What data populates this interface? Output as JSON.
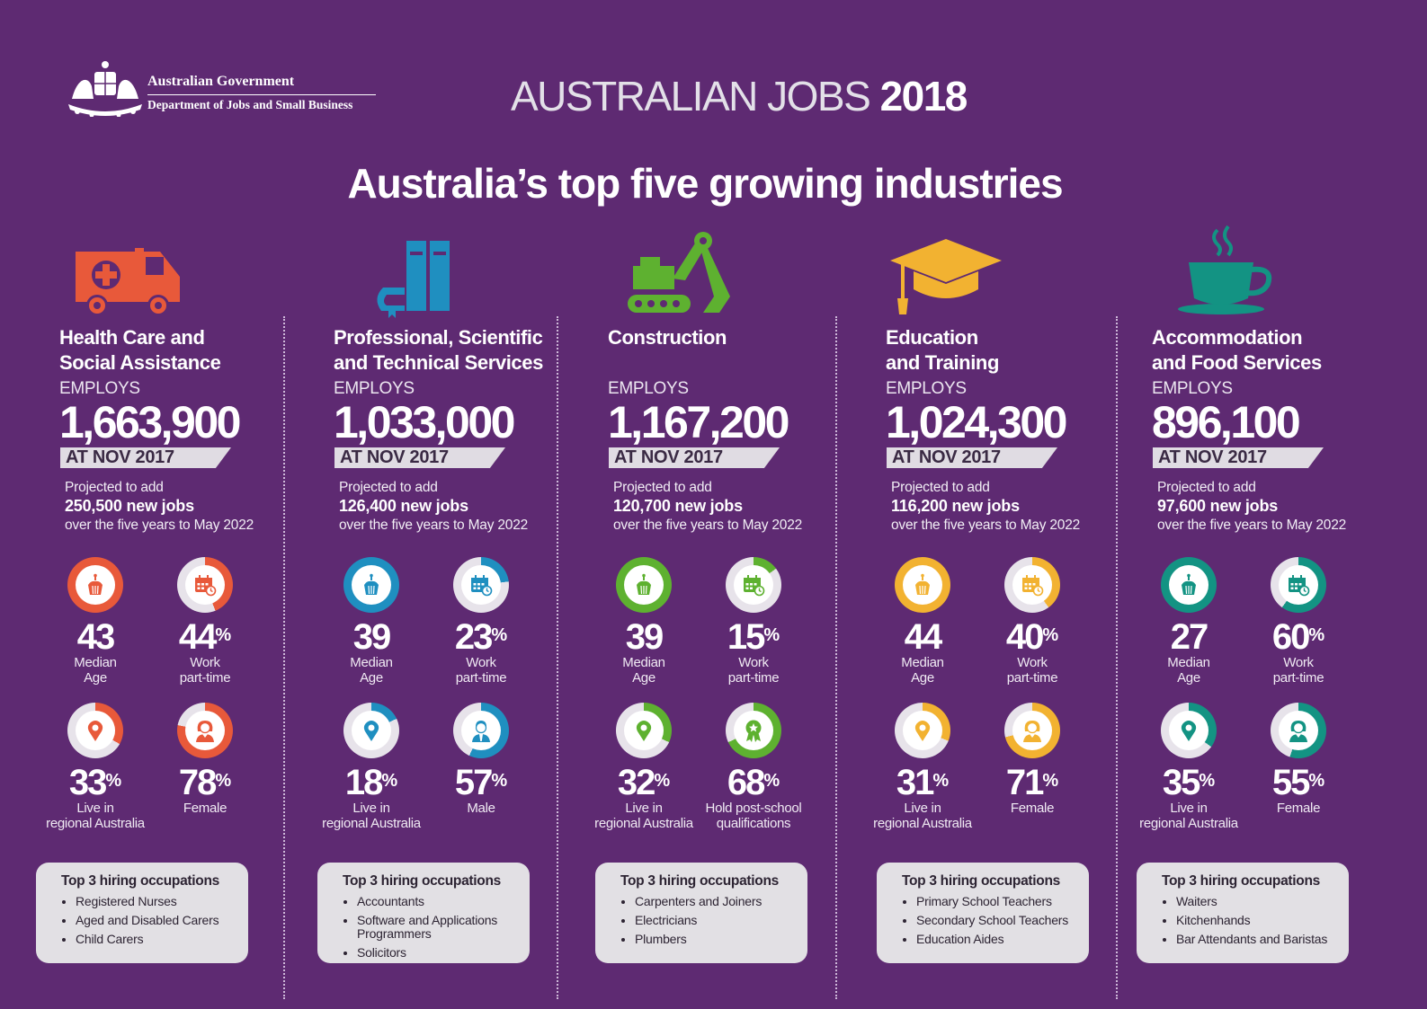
{
  "header": {
    "gov_name": "Australian Government",
    "dept_name": "Department of Jobs and Small Business",
    "title_part1": "AUSTRALIAN JOBS",
    "title_part2": "2018"
  },
  "heading": "Australia’s top five growing industries",
  "colors": {
    "background": "#5e2a72",
    "ring_track": "#e7e3ea",
    "health": "#e8593a",
    "professional": "#1f8fc0",
    "construction": "#5eb130",
    "education": "#f2b231",
    "accommodation": "#139383"
  },
  "industries": [
    {
      "name_line1": "Health Care and",
      "name_line2": "Social Assistance",
      "icon": "ambulance-icon",
      "color": "#e8593a",
      "employs_label": "EMPLOYS",
      "employs": "1,663,900",
      "as_at": "AT NOV 2017",
      "proj_prefix": "Projected to add",
      "new_jobs": "250,500 new jobs",
      "proj_suffix": "over the five years to May 2022",
      "stats": [
        {
          "icon": "cake-icon",
          "value": "43",
          "suffix": "",
          "label1": "Median",
          "label2": "Age",
          "fraction": 1.0
        },
        {
          "icon": "calendar-icon",
          "value": "44",
          "suffix": "%",
          "label1": "Work",
          "label2": "part-time",
          "fraction": 0.44
        },
        {
          "icon": "map-pin-icon",
          "value": "33",
          "suffix": "%",
          "label1": "Live in",
          "label2": "regional Australia",
          "fraction": 0.33
        },
        {
          "icon": "female-icon",
          "value": "78",
          "suffix": "%",
          "label1": "Female",
          "label2": "",
          "fraction": 0.78
        }
      ],
      "occupations_title": "Top 3 hiring occupations",
      "occupations": [
        "Registered Nurses",
        "Aged and Disabled Carers",
        "Child Carers"
      ]
    },
    {
      "name_line1": "Professional, Scientific",
      "name_line2": "and Technical Services",
      "icon": "books-icon",
      "color": "#1f8fc0",
      "employs_label": "EMPLOYS",
      "employs": "1,033,000",
      "as_at": "AT NOV 2017",
      "proj_prefix": "Projected to add",
      "new_jobs": "126,400 new jobs",
      "proj_suffix": "over the five years to May 2022",
      "stats": [
        {
          "icon": "cake-icon",
          "value": "39",
          "suffix": "",
          "label1": "Median",
          "label2": "Age",
          "fraction": 1.0
        },
        {
          "icon": "calendar-icon",
          "value": "23",
          "suffix": "%",
          "label1": "Work",
          "label2": "part-time",
          "fraction": 0.23
        },
        {
          "icon": "map-pin-icon",
          "value": "18",
          "suffix": "%",
          "label1": "Live in",
          "label2": "regional Australia",
          "fraction": 0.18
        },
        {
          "icon": "male-icon",
          "value": "57",
          "suffix": "%",
          "label1": "Male",
          "label2": "",
          "fraction": 0.57
        }
      ],
      "occupations_title": "Top 3 hiring occupations",
      "occupations": [
        "Accountants",
        "Software and Applications Programmers",
        "Solicitors"
      ]
    },
    {
      "name_line1": "Construction",
      "name_line2": "",
      "icon": "excavator-icon",
      "color": "#5eb130",
      "employs_label": "EMPLOYS",
      "employs": "1,167,200",
      "as_at": "AT NOV 2017",
      "proj_prefix": "Projected to add",
      "new_jobs": "120,700 new jobs",
      "proj_suffix": "over the five years to May 2022",
      "stats": [
        {
          "icon": "cake-icon",
          "value": "39",
          "suffix": "",
          "label1": "Median",
          "label2": "Age",
          "fraction": 1.0
        },
        {
          "icon": "calendar-icon",
          "value": "15",
          "suffix": "%",
          "label1": "Work",
          "label2": "part-time",
          "fraction": 0.15
        },
        {
          "icon": "map-pin-icon",
          "value": "32",
          "suffix": "%",
          "label1": "Live in",
          "label2": "regional Australia",
          "fraction": 0.32
        },
        {
          "icon": "award-icon",
          "value": "68",
          "suffix": "%",
          "label1": "Hold post-school",
          "label2": "qualifications",
          "fraction": 0.68
        }
      ],
      "occupations_title": "Top 3 hiring occupations",
      "occupations": [
        "Carpenters and Joiners",
        "Electricians",
        "Plumbers"
      ]
    },
    {
      "name_line1": "Education",
      "name_line2": "and Training",
      "icon": "graduation-cap-icon",
      "color": "#f2b231",
      "employs_label": "EMPLOYS",
      "employs": "1,024,300",
      "as_at": "AT NOV 2017",
      "proj_prefix": "Projected to add",
      "new_jobs": "116,200 new jobs",
      "proj_suffix": "over the five years to May 2022",
      "stats": [
        {
          "icon": "cake-icon",
          "value": "44",
          "suffix": "",
          "label1": "Median",
          "label2": "Age",
          "fraction": 1.0
        },
        {
          "icon": "calendar-icon",
          "value": "40",
          "suffix": "%",
          "label1": "Work",
          "label2": "part-time",
          "fraction": 0.4
        },
        {
          "icon": "map-pin-icon",
          "value": "31",
          "suffix": "%",
          "label1": "Live in",
          "label2": "regional Australia",
          "fraction": 0.31
        },
        {
          "icon": "female-icon",
          "value": "71",
          "suffix": "%",
          "label1": "Female",
          "label2": "",
          "fraction": 0.71
        }
      ],
      "occupations_title": "Top 3 hiring occupations",
      "occupations": [
        "Primary School Teachers",
        "Secondary School Teachers",
        "Education Aides"
      ]
    },
    {
      "name_line1": "Accommodation",
      "name_line2": "and Food Services",
      "icon": "coffee-cup-icon",
      "color": "#139383",
      "employs_label": "EMPLOYS",
      "employs": "896,100",
      "as_at": "AT NOV 2017",
      "proj_prefix": "Projected to add",
      "new_jobs": "97,600 new jobs",
      "proj_suffix": "over the five years to May 2022",
      "stats": [
        {
          "icon": "cake-icon",
          "value": "27",
          "suffix": "",
          "label1": "Median",
          "label2": "Age",
          "fraction": 1.0
        },
        {
          "icon": "calendar-icon",
          "value": "60",
          "suffix": "%",
          "label1": "Work",
          "label2": "part-time",
          "fraction": 0.6
        },
        {
          "icon": "map-pin-icon",
          "value": "35",
          "suffix": "%",
          "label1": "Live in",
          "label2": "regional Australia",
          "fraction": 0.35
        },
        {
          "icon": "female-icon",
          "value": "55",
          "suffix": "%",
          "label1": "Female",
          "label2": "",
          "fraction": 0.55
        }
      ],
      "occupations_title": "Top 3 hiring occupations",
      "occupations": [
        "Waiters",
        "Kitchenhands",
        "Bar Attendants and Baristas"
      ]
    }
  ]
}
